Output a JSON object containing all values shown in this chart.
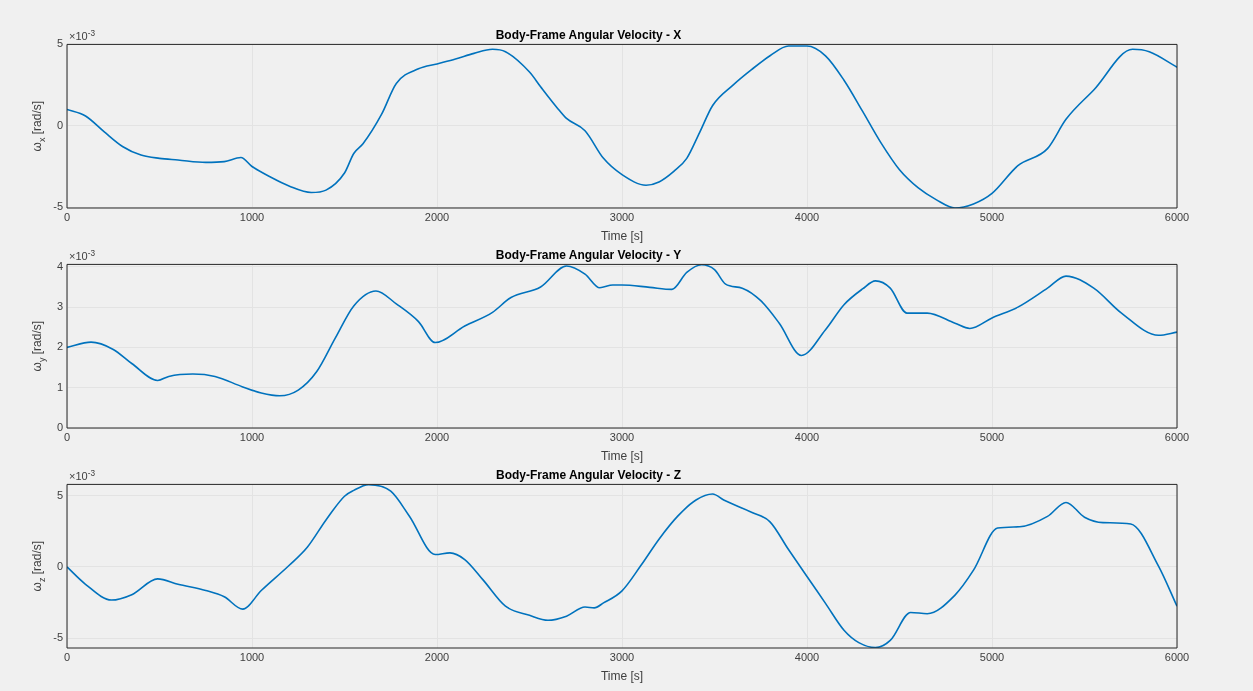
{
  "chart_data": [
    {
      "type": "line",
      "title": "Body-Frame Angular Velocity - X",
      "xlabel": "Time [s]",
      "ylabel": "ω$_{x}$ [rad/s]",
      "annotations": [
        "×10$^{-3}$"
      ],
      "color": "#0072bd",
      "grid": true,
      "xlim": [
        0,
        6000
      ],
      "xticks": [
        0,
        1000,
        2000,
        3000,
        4000,
        5000,
        6000
      ],
      "ylim": [
        -5.05,
        5
      ],
      "yticks": [
        -5,
        0,
        5
      ],
      "x": [
        0,
        100,
        200,
        300,
        400,
        500,
        600,
        750,
        850,
        940,
        1000,
        1100,
        1200,
        1320,
        1400,
        1500,
        1550,
        1600,
        1700,
        1780,
        1900,
        2000,
        2100,
        2200,
        2300,
        2370,
        2500,
        2560,
        2650,
        2700,
        2800,
        2900,
        3000,
        3130,
        3200,
        3280,
        3350,
        3420,
        3490,
        3600,
        3700,
        3800,
        3900,
        3960,
        4000,
        4100,
        4200,
        4300,
        4400,
        4500,
        4600,
        4700,
        4800,
        4900,
        5000,
        5140,
        5300,
        5400,
        5550,
        5760,
        5850,
        6000
      ],
      "values": [
        1.0,
        0.6,
        -0.36,
        -1.27,
        -1.8,
        -2.0,
        -2.1,
        -2.25,
        -2.2,
        -1.95,
        -2.5,
        -3.15,
        -3.7,
        -4.1,
        -3.95,
        -2.9,
        -1.7,
        -1.1,
        0.7,
        2.6,
        3.5,
        3.8,
        4.1,
        4.45,
        4.7,
        4.55,
        3.3,
        2.4,
        1.1,
        0.45,
        -0.3,
        -2.0,
        -3.0,
        -3.65,
        -3.45,
        -2.8,
        -2.0,
        -0.4,
        1.25,
        2.5,
        3.45,
        4.3,
        4.9,
        4.9,
        4.9,
        4.3,
        2.8,
        0.9,
        -1.05,
        -2.7,
        -3.8,
        -4.55,
        -5.05,
        -4.8,
        -4.15,
        -2.45,
        -1.4,
        0.4,
        2.2,
        4.7,
        4.55,
        3.6
      ]
    },
    {
      "type": "line",
      "title": "Body-Frame Angular Velocity - Y",
      "xlabel": "Time [s]",
      "ylabel": "ω$_{y}$ [rad/s]",
      "annotations": [
        "×10$^{-3}$"
      ],
      "color": "#0072bd",
      "grid": true,
      "xlim": [
        0,
        6000
      ],
      "xticks": [
        0,
        1000,
        2000,
        3000,
        4000,
        5000,
        6000
      ],
      "ylim": [
        0,
        4.06
      ],
      "yticks": [
        0,
        1,
        2,
        3,
        4
      ],
      "x": [
        0,
        130,
        250,
        350,
        490,
        550,
        680,
        800,
        950,
        1050,
        1150,
        1250,
        1350,
        1450,
        1550,
        1670,
        1780,
        1900,
        1990,
        2150,
        2300,
        2400,
        2560,
        2700,
        2800,
        2880,
        2950,
        3000,
        3150,
        3270,
        3350,
        3430,
        3500,
        3560,
        3650,
        3750,
        3850,
        3970,
        4100,
        4200,
        4300,
        4370,
        4450,
        4540,
        4650,
        4800,
        4880,
        5000,
        5140,
        5300,
        5400,
        5550,
        5700,
        5900,
        6000
      ],
      "values": [
        2.0,
        2.13,
        1.95,
        1.6,
        1.18,
        1.28,
        1.34,
        1.28,
        1.02,
        0.87,
        0.8,
        0.94,
        1.4,
        2.23,
        3.03,
        3.4,
        3.08,
        2.64,
        2.12,
        2.53,
        2.87,
        3.24,
        3.5,
        4.02,
        3.82,
        3.48,
        3.55,
        3.55,
        3.49,
        3.44,
        3.86,
        4.05,
        3.93,
        3.57,
        3.47,
        3.16,
        2.6,
        1.8,
        2.44,
        3.06,
        3.45,
        3.65,
        3.47,
        2.85,
        2.85,
        2.6,
        2.47,
        2.73,
        3.0,
        3.47,
        3.77,
        3.47,
        2.85,
        2.3,
        2.38
      ]
    },
    {
      "type": "line",
      "title": "Body-Frame Angular Velocity - Z",
      "xlabel": "Time [s]",
      "ylabel": "ω$_{z}$ [rad/s]",
      "annotations": [
        "×10$^{-3}$"
      ],
      "color": "#0072bd",
      "grid": true,
      "xlim": [
        0,
        6000
      ],
      "xticks": [
        0,
        1000,
        2000,
        3000,
        4000,
        5000,
        6000
      ],
      "ylim": [
        -5.7,
        5.8
      ],
      "yticks": [
        -5,
        0,
        5
      ],
      "x": [
        0,
        100,
        240,
        350,
        490,
        600,
        750,
        850,
        950,
        1050,
        1200,
        1300,
        1400,
        1500,
        1550,
        1630,
        1750,
        1850,
        1990,
        2070,
        2150,
        2250,
        2370,
        2500,
        2600,
        2700,
        2800,
        2850,
        2900,
        3000,
        3100,
        3200,
        3300,
        3400,
        3490,
        3550,
        3700,
        3800,
        3900,
        4000,
        4100,
        4200,
        4280,
        4370,
        4450,
        4560,
        4650,
        4800,
        4900,
        5030,
        5150,
        5300,
        5400,
        5500,
        5600,
        5750,
        5900,
        6000
      ],
      "values": [
        0,
        -1.22,
        -2.33,
        -1.95,
        -0.84,
        -1.22,
        -1.66,
        -2.1,
        -2.97,
        -1.66,
        0.1,
        1.4,
        3.3,
        4.97,
        5.38,
        5.78,
        5.32,
        3.58,
        0.87,
        0.99,
        0.52,
        -0.93,
        -2.76,
        -3.4,
        -3.75,
        -3.46,
        -2.82,
        -2.88,
        -2.53,
        -1.68,
        0.06,
        1.95,
        3.55,
        4.7,
        5.12,
        4.7,
        3.84,
        3.17,
        1.22,
        -0.67,
        -2.56,
        -4.45,
        -5.32,
        -5.67,
        -5.17,
        -3.2,
        -3.29,
        -1.98,
        -0.23,
        2.73,
        2.82,
        3.55,
        4.53,
        3.49,
        3.11,
        3.02,
        0.06,
        -2.76
      ]
    }
  ]
}
